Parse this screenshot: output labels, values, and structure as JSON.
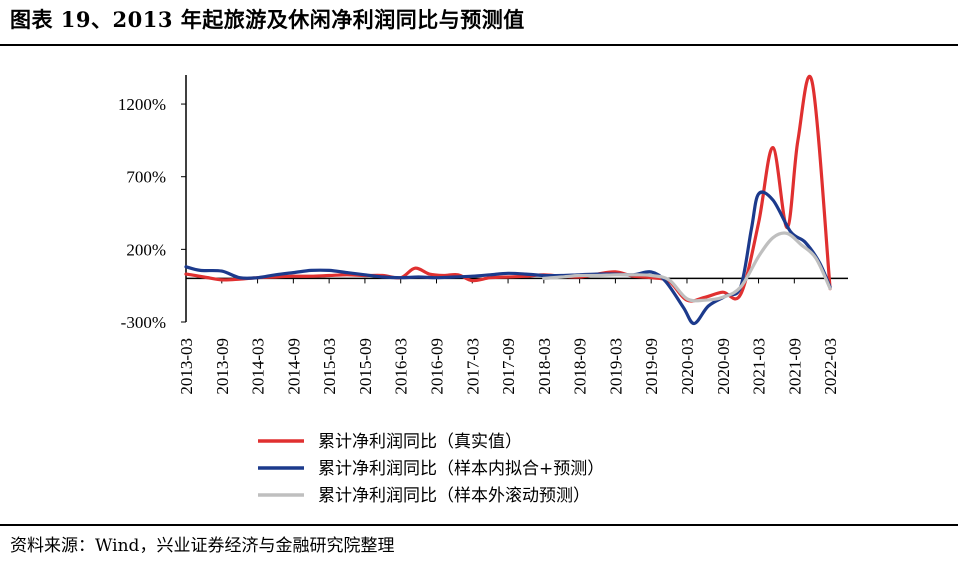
{
  "figure": {
    "title": "图表 19、2013 年起旅游及休闲净利润同比与预测值",
    "source": "资料来源：Wind，兴业证券经济与金融研究院整理"
  },
  "chart_data": {
    "type": "line",
    "title": "",
    "xlabel": "",
    "ylabel": "",
    "ylim": [
      -300,
      1400
    ],
    "yticks": [
      -300,
      200,
      700,
      1200
    ],
    "ytick_labels": [
      "-300%",
      "200%",
      "700%",
      "1200%"
    ],
    "xlim": [
      2013.0,
      2022.25
    ],
    "xtick_labels": [
      "2013-03",
      "2013-09",
      "2014-03",
      "2014-09",
      "2015-03",
      "2015-09",
      "2016-03",
      "2016-09",
      "2017-03",
      "2017-09",
      "2018-03",
      "2018-09",
      "2019-03",
      "2019-09",
      "2020-03",
      "2020-09",
      "2021-03",
      "2021-09",
      "2022-03"
    ],
    "xticks": [
      2013.0,
      2013.5,
      2014.0,
      2014.5,
      2015.0,
      2015.5,
      2016.0,
      2016.5,
      2017.0,
      2017.5,
      2018.0,
      2018.5,
      2019.0,
      2019.5,
      2020.0,
      2020.5,
      2021.0,
      2021.5,
      2022.0
    ],
    "legend_position": "bottom",
    "grid": false,
    "series": [
      {
        "name": "累计净利润同比（真实值）",
        "color": "#e03030",
        "points": [
          [
            2013.0,
            30
          ],
          [
            2013.25,
            10
          ],
          [
            2013.5,
            -10
          ],
          [
            2013.75,
            -5
          ],
          [
            2014.0,
            5
          ],
          [
            2014.25,
            10
          ],
          [
            2014.5,
            15
          ],
          [
            2014.75,
            15
          ],
          [
            2015.0,
            20
          ],
          [
            2015.25,
            25
          ],
          [
            2015.5,
            20
          ],
          [
            2015.75,
            20
          ],
          [
            2016.0,
            5
          ],
          [
            2016.2,
            70
          ],
          [
            2016.4,
            30
          ],
          [
            2016.6,
            20
          ],
          [
            2016.8,
            25
          ],
          [
            2017.0,
            -15
          ],
          [
            2017.25,
            5
          ],
          [
            2017.5,
            10
          ],
          [
            2017.75,
            15
          ],
          [
            2018.0,
            25
          ],
          [
            2018.25,
            15
          ],
          [
            2018.5,
            10
          ],
          [
            2018.75,
            30
          ],
          [
            2019.0,
            45
          ],
          [
            2019.25,
            15
          ],
          [
            2019.5,
            5
          ],
          [
            2019.75,
            -20
          ],
          [
            2020.0,
            -150
          ],
          [
            2020.25,
            -130
          ],
          [
            2020.5,
            -95
          ],
          [
            2020.75,
            -110
          ],
          [
            2021.0,
            380
          ],
          [
            2021.2,
            900
          ],
          [
            2021.4,
            350
          ],
          [
            2021.55,
            950
          ],
          [
            2021.75,
            1350
          ],
          [
            2022.0,
            -70
          ]
        ]
      },
      {
        "name": "累计净利润同比（样本内拟合+预测）",
        "color": "#1c3a8c",
        "points": [
          [
            2013.0,
            80
          ],
          [
            2013.2,
            55
          ],
          [
            2013.5,
            50
          ],
          [
            2013.75,
            5
          ],
          [
            2014.0,
            5
          ],
          [
            2014.25,
            25
          ],
          [
            2014.5,
            40
          ],
          [
            2014.75,
            55
          ],
          [
            2015.0,
            55
          ],
          [
            2015.25,
            40
          ],
          [
            2015.5,
            25
          ],
          [
            2015.75,
            10
          ],
          [
            2016.0,
            5
          ],
          [
            2016.25,
            10
          ],
          [
            2016.5,
            5
          ],
          [
            2016.75,
            10
          ],
          [
            2017.0,
            15
          ],
          [
            2017.25,
            25
          ],
          [
            2017.5,
            35
          ],
          [
            2017.75,
            30
          ],
          [
            2018.0,
            20
          ],
          [
            2018.25,
            20
          ],
          [
            2018.5,
            25
          ],
          [
            2018.75,
            30
          ],
          [
            2019.0,
            30
          ],
          [
            2019.25,
            25
          ],
          [
            2019.5,
            45
          ],
          [
            2019.7,
            -20
          ],
          [
            2019.95,
            -200
          ],
          [
            2020.1,
            -310
          ],
          [
            2020.3,
            -190
          ],
          [
            2020.55,
            -120
          ],
          [
            2020.75,
            -60
          ],
          [
            2020.9,
            340
          ],
          [
            2021.0,
            580
          ],
          [
            2021.2,
            540
          ],
          [
            2021.45,
            320
          ],
          [
            2021.65,
            250
          ],
          [
            2021.85,
            110
          ],
          [
            2022.0,
            -60
          ]
        ]
      },
      {
        "name": "累计净利润同比（样本外滚动预测）",
        "color": "#bfbfbf",
        "points": [
          [
            2018.0,
            0
          ],
          [
            2018.25,
            10
          ],
          [
            2018.5,
            20
          ],
          [
            2018.75,
            20
          ],
          [
            2019.0,
            25
          ],
          [
            2019.25,
            25
          ],
          [
            2019.5,
            20
          ],
          [
            2019.75,
            -10
          ],
          [
            2020.0,
            -140
          ],
          [
            2020.25,
            -150
          ],
          [
            2020.5,
            -130
          ],
          [
            2020.75,
            -60
          ],
          [
            2021.0,
            150
          ],
          [
            2021.2,
            280
          ],
          [
            2021.4,
            310
          ],
          [
            2021.6,
            230
          ],
          [
            2021.8,
            140
          ],
          [
            2022.0,
            -70
          ]
        ]
      }
    ]
  }
}
